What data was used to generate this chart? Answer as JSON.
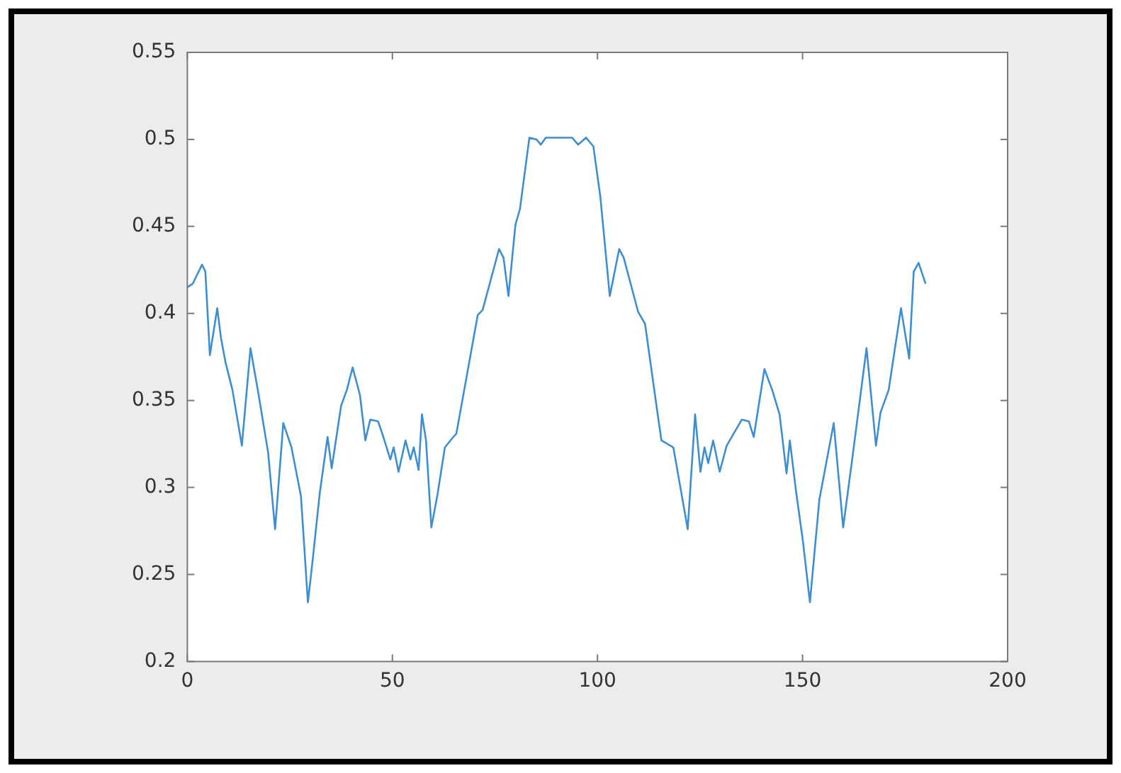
{
  "chart_data": {
    "type": "line",
    "xlim": [
      0,
      200
    ],
    "xticks": [
      0,
      50,
      100,
      150,
      200
    ],
    "ylim": [
      0.2,
      0.55
    ],
    "yticks": [
      0.2,
      0.25,
      0.3,
      0.35,
      0.4,
      0.45,
      0.5,
      0.55
    ],
    "grid": false,
    "legend": false,
    "marker": "none",
    "line_style": "solid",
    "series": [
      {
        "color": "#3d8fd1",
        "x": [
          0,
          1.3,
          3.6,
          4.4,
          5.5,
          7.3,
          8.2,
          9.3,
          11,
          13.3,
          15.4,
          17.4,
          19.7,
          21.4,
          23.4,
          25.4,
          27.7,
          29.4,
          30.6,
          32.3,
          34.2,
          35.2,
          37.5,
          38.9,
          40.3,
          42.1,
          43.4,
          44.6,
          46.5,
          47.8,
          49.5,
          50.3,
          51.5,
          53.2,
          54.4,
          55.2,
          56.4,
          57.2,
          58.2,
          59.5,
          61,
          62.8,
          64.5,
          65.6,
          70.8,
          72,
          76,
          77.1,
          78.3,
          80,
          81.1,
          83.4,
          85.1,
          86.2,
          87.4,
          93.8,
          95.3,
          97.2,
          99,
          100.7,
          103,
          105.3,
          106.4,
          109.9,
          111.6,
          114.5,
          115.6,
          118.5,
          122,
          123.8,
          125.1,
          126.1,
          127,
          128.2,
          129.8,
          131.5,
          135.2,
          136.9,
          138.1,
          140.7,
          142.6,
          144.4,
          146.1,
          146.9,
          148.4,
          150.1,
          151.8,
          154.1,
          157.6,
          159.9,
          162.2,
          165.6,
          167.9,
          169,
          171,
          174,
          176,
          177.1,
          178.3,
          180
        ],
        "values": [
          0.415,
          0.417,
          0.428,
          0.424,
          0.376,
          0.403,
          0.386,
          0.372,
          0.356,
          0.324,
          0.38,
          0.353,
          0.32,
          0.276,
          0.337,
          0.323,
          0.295,
          0.234,
          0.259,
          0.297,
          0.329,
          0.311,
          0.347,
          0.356,
          0.369,
          0.353,
          0.327,
          0.339,
          0.338,
          0.329,
          0.316,
          0.323,
          0.309,
          0.327,
          0.316,
          0.323,
          0.31,
          0.342,
          0.327,
          0.277,
          0.296,
          0.323,
          0.328,
          0.331,
          0.399,
          0.402,
          0.437,
          0.432,
          0.41,
          0.451,
          0.46,
          0.501,
          0.5,
          0.497,
          0.501,
          0.501,
          0.497,
          0.501,
          0.496,
          0.467,
          0.41,
          0.437,
          0.432,
          0.401,
          0.394,
          0.345,
          0.327,
          0.323,
          0.276,
          0.342,
          0.309,
          0.323,
          0.314,
          0.327,
          0.309,
          0.324,
          0.339,
          0.338,
          0.329,
          0.368,
          0.356,
          0.342,
          0.308,
          0.327,
          0.298,
          0.269,
          0.234,
          0.293,
          0.337,
          0.277,
          0.318,
          0.38,
          0.324,
          0.343,
          0.356,
          0.403,
          0.374,
          0.424,
          0.429,
          0.417
        ]
      }
    ]
  }
}
